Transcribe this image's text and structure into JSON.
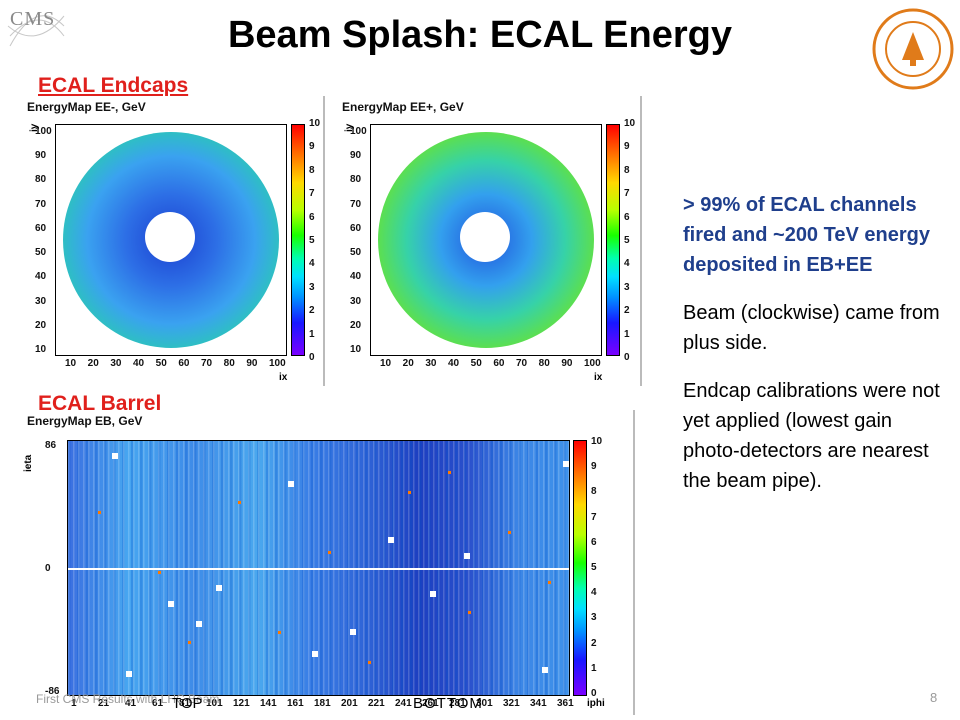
{
  "slide": {
    "title": "Beam Splash: ECAL Energy",
    "logo_text": "CMS",
    "footer": "First CMS Results with LHC Beam",
    "page_number": "8"
  },
  "sections": {
    "endcaps_label": "ECAL Endcaps",
    "barrel_label": "ECAL Barrel"
  },
  "plots": {
    "ee_minus": {
      "title": "EnergyMap EE-, GeV",
      "ylabel": "iy",
      "xlabel": "ix",
      "yticks": [
        "100",
        "90",
        "80",
        "70",
        "60",
        "50",
        "40",
        "30",
        "20",
        "10"
      ],
      "xticks": [
        "10",
        "20",
        "30",
        "40",
        "50",
        "60",
        "70",
        "80",
        "90",
        "100"
      ],
      "zticks": [
        "10",
        "9",
        "8",
        "7",
        "6",
        "5",
        "4",
        "3",
        "2",
        "1",
        "0"
      ]
    },
    "ee_plus": {
      "title": "EnergyMap EE+, GeV",
      "ylabel": "iy",
      "xlabel": "ix",
      "yticks": [
        "100",
        "90",
        "80",
        "70",
        "60",
        "50",
        "40",
        "30",
        "20",
        "10"
      ],
      "xticks": [
        "10",
        "20",
        "30",
        "40",
        "50",
        "60",
        "70",
        "80",
        "90",
        "100"
      ],
      "zticks": [
        "10",
        "9",
        "8",
        "7",
        "6",
        "5",
        "4",
        "3",
        "2",
        "1",
        "0"
      ]
    },
    "eb": {
      "title": "EnergyMap EB, GeV",
      "ylabel": "ieta",
      "xlabel": "iphi",
      "yticks": [
        "86",
        "0",
        "-86"
      ],
      "xticks": [
        "1",
        "21",
        "41",
        "61",
        "81",
        "101",
        "121",
        "141",
        "161",
        "181",
        "201",
        "221",
        "241",
        "261",
        "281",
        "301",
        "321",
        "341",
        "361"
      ],
      "zticks": [
        "10",
        "9",
        "8",
        "7",
        "6",
        "5",
        "4",
        "3",
        "2",
        "1",
        "0"
      ],
      "top_label": "TOP",
      "bottom_label": "BOTTOM"
    }
  },
  "text": {
    "highlight": "> 99% of ECAL channels fired and ~200 TeV energy deposited in EB+EE",
    "para1": "Beam (clockwise) came from plus side.",
    "para2": "Endcap calibrations were not yet applied (lowest gain photo-detectors are nearest the beam pipe)."
  },
  "colors": {
    "title": "#000000",
    "section_label": "#e0201c",
    "highlight_text": "#1f3f8c"
  }
}
